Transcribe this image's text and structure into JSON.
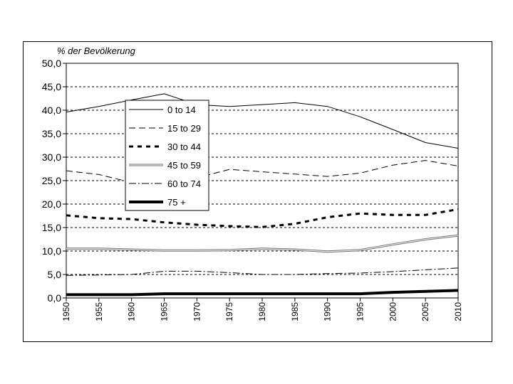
{
  "chart_data": {
    "type": "line",
    "title": "",
    "ylabel": "% der Bevölkerung",
    "xlabel": "",
    "ylim": [
      0,
      50
    ],
    "yticks": [
      "0,0",
      "5,0",
      "10,0",
      "15,0",
      "20,0",
      "25,0",
      "30,0",
      "35,0",
      "40,0",
      "45,0",
      "50,0"
    ],
    "x": [
      1950,
      1955,
      1960,
      1965,
      1970,
      1975,
      1980,
      1985,
      1990,
      1995,
      2000,
      2005,
      2010
    ],
    "grid": "horizontal dashed",
    "legend_position": "upper-left inside",
    "series": [
      {
        "name": "0 to 14",
        "style": "solid-thin",
        "color": "#000000",
        "values": [
          39.6,
          40.8,
          42.2,
          43.5,
          41.2,
          40.8,
          41.2,
          41.6,
          40.8,
          38.6,
          35.9,
          33.1,
          31.9
        ]
      },
      {
        "name": "15 to 29",
        "style": "dashed-long",
        "color": "#000000",
        "values": [
          27.1,
          26.3,
          24.6,
          24.3,
          25.6,
          27.4,
          26.9,
          26.4,
          25.9,
          26.6,
          28.3,
          29.3,
          28.1
        ]
      },
      {
        "name": "30 to 44",
        "style": "dashed-bold",
        "color": "#000000",
        "values": [
          17.6,
          17.0,
          16.8,
          16.1,
          15.6,
          15.3,
          15.1,
          15.8,
          17.2,
          18.0,
          17.7,
          17.7,
          18.9
        ]
      },
      {
        "name": "45 to 59",
        "style": "double-gray",
        "color": "#808080",
        "values": [
          10.5,
          10.5,
          10.3,
          10.1,
          10.1,
          10.2,
          10.5,
          10.3,
          9.9,
          10.2,
          11.4,
          12.5,
          13.3
        ]
      },
      {
        "name": "60 to 74",
        "style": "dash-dot",
        "color": "#000000",
        "values": [
          4.8,
          4.9,
          5.0,
          5.7,
          5.7,
          5.4,
          5.0,
          5.0,
          5.2,
          5.3,
          5.6,
          6.0,
          6.4
        ]
      },
      {
        "name": "75 +",
        "style": "solid-bold",
        "color": "#000000",
        "values": [
          0.7,
          0.7,
          0.7,
          0.9,
          0.9,
          0.9,
          0.9,
          0.9,
          0.9,
          0.9,
          1.2,
          1.4,
          1.6
        ]
      }
    ]
  }
}
